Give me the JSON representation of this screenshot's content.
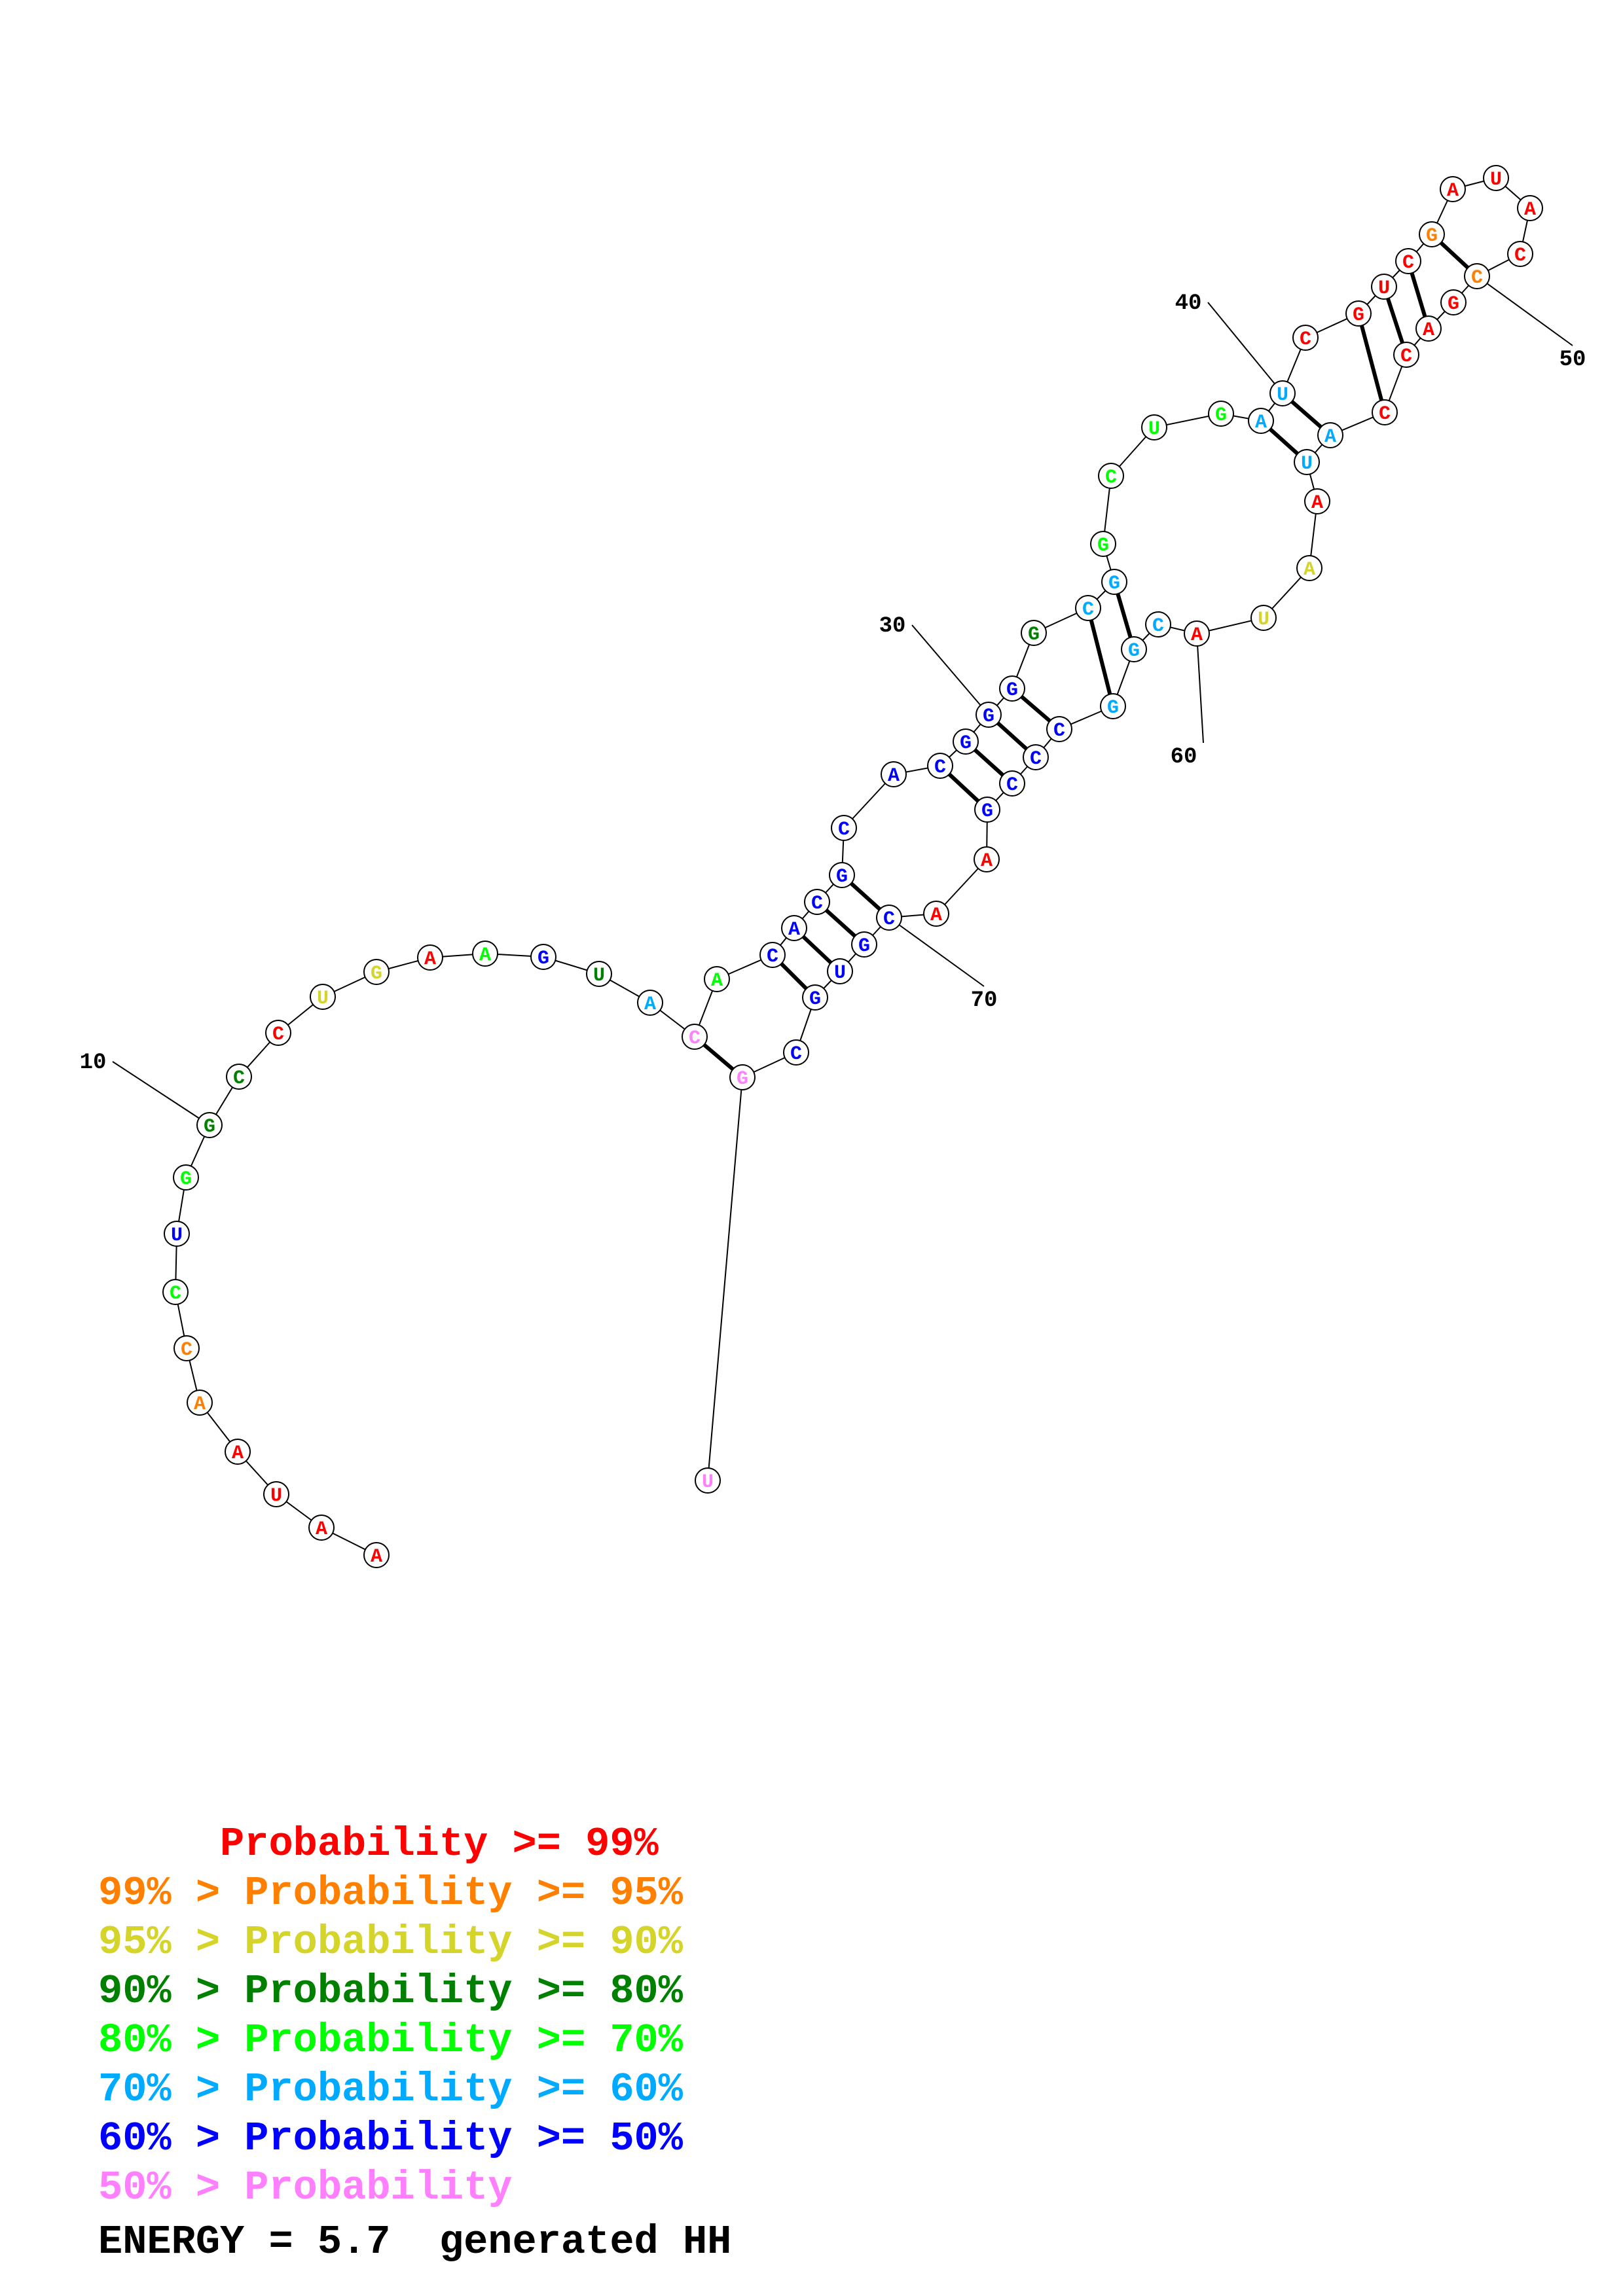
{
  "colors": {
    "p99": "#ff0000",
    "p95": "#ff8000",
    "p90": "#d4d42a",
    "p80": "#008000",
    "p70": "#00ff00",
    "p60": "#00aaff",
    "p50": "#0000ff",
    "plow": "#ff80ff"
  },
  "sequence": [
    {
      "n": 1,
      "b": "A",
      "c": "p99"
    },
    {
      "n": 2,
      "b": "A",
      "c": "p99"
    },
    {
      "n": 3,
      "b": "U",
      "c": "p99"
    },
    {
      "n": 4,
      "b": "A",
      "c": "p99"
    },
    {
      "n": 5,
      "b": "A",
      "c": "p95"
    },
    {
      "n": 6,
      "b": "C",
      "c": "p95"
    },
    {
      "n": 7,
      "b": "C",
      "c": "p70"
    },
    {
      "n": 8,
      "b": "U",
      "c": "p50"
    },
    {
      "n": 9,
      "b": "G",
      "c": "p70"
    },
    {
      "n": 10,
      "b": "G",
      "c": "p80"
    },
    {
      "n": 11,
      "b": "C",
      "c": "p80"
    },
    {
      "n": 12,
      "b": "C",
      "c": "p99"
    },
    {
      "n": 13,
      "b": "U",
      "c": "p90"
    },
    {
      "n": 14,
      "b": "G",
      "c": "p90"
    },
    {
      "n": 15,
      "b": "A",
      "c": "p99"
    },
    {
      "n": 16,
      "b": "A",
      "c": "p70"
    },
    {
      "n": 17,
      "b": "G",
      "c": "p50"
    },
    {
      "n": 18,
      "b": "U",
      "c": "p80"
    },
    {
      "n": 19,
      "b": "A",
      "c": "p60"
    },
    {
      "n": 20,
      "b": "C",
      "c": "plow"
    },
    {
      "n": 21,
      "b": "A",
      "c": "p70"
    },
    {
      "n": 22,
      "b": "C",
      "c": "p50"
    },
    {
      "n": 23,
      "b": "A",
      "c": "p50"
    },
    {
      "n": 24,
      "b": "C",
      "c": "p50"
    },
    {
      "n": 25,
      "b": "G",
      "c": "p50"
    },
    {
      "n": 26,
      "b": "C",
      "c": "p50"
    },
    {
      "n": 27,
      "b": "A",
      "c": "p50"
    },
    {
      "n": 28,
      "b": "C",
      "c": "p50"
    },
    {
      "n": 29,
      "b": "G",
      "c": "p50"
    },
    {
      "n": 30,
      "b": "G",
      "c": "p50"
    },
    {
      "n": 31,
      "b": "G",
      "c": "p50"
    },
    {
      "n": 32,
      "b": "G",
      "c": "p80"
    },
    {
      "n": 33,
      "b": "C",
      "c": "p60"
    },
    {
      "n": 34,
      "b": "G",
      "c": "p60"
    },
    {
      "n": 35,
      "b": "G",
      "c": "p70"
    },
    {
      "n": 36,
      "b": "C",
      "c": "p70"
    },
    {
      "n": 37,
      "b": "U",
      "c": "p70"
    },
    {
      "n": 38,
      "b": "G",
      "c": "p70"
    },
    {
      "n": 39,
      "b": "A",
      "c": "p60"
    },
    {
      "n": 40,
      "b": "U",
      "c": "p60"
    },
    {
      "n": 41,
      "b": "C",
      "c": "p99"
    },
    {
      "n": 42,
      "b": "G",
      "c": "p99"
    },
    {
      "n": 43,
      "b": "U",
      "c": "p99"
    },
    {
      "n": 44,
      "b": "C",
      "c": "p99"
    },
    {
      "n": 45,
      "b": "G",
      "c": "p95"
    },
    {
      "n": 46,
      "b": "A",
      "c": "p99"
    },
    {
      "n": 47,
      "b": "U",
      "c": "p99"
    },
    {
      "n": 48,
      "b": "A",
      "c": "p99"
    },
    {
      "n": 49,
      "b": "C",
      "c": "p99"
    },
    {
      "n": 50,
      "b": "C",
      "c": "p95"
    },
    {
      "n": 51,
      "b": "G",
      "c": "p99"
    },
    {
      "n": 52,
      "b": "A",
      "c": "p99"
    },
    {
      "n": 53,
      "b": "C",
      "c": "p99"
    },
    {
      "n": 54,
      "b": "C",
      "c": "p99"
    },
    {
      "n": 55,
      "b": "A",
      "c": "p60"
    },
    {
      "n": 56,
      "b": "U",
      "c": "p60"
    },
    {
      "n": 57,
      "b": "A",
      "c": "p99"
    },
    {
      "n": 58,
      "b": "A",
      "c": "p90"
    },
    {
      "n": 59,
      "b": "U",
      "c": "p90"
    },
    {
      "n": 60,
      "b": "A",
      "c": "p99"
    },
    {
      "n": 61,
      "b": "C",
      "c": "p60"
    },
    {
      "n": 62,
      "b": "G",
      "c": "p60"
    },
    {
      "n": 63,
      "b": "G",
      "c": "p60"
    },
    {
      "n": 64,
      "b": "C",
      "c": "p50"
    },
    {
      "n": 65,
      "b": "C",
      "c": "p50"
    },
    {
      "n": 66,
      "b": "C",
      "c": "p50"
    },
    {
      "n": 67,
      "b": "G",
      "c": "p50"
    },
    {
      "n": 68,
      "b": "A",
      "c": "p99"
    },
    {
      "n": 69,
      "b": "A",
      "c": "p99"
    },
    {
      "n": 70,
      "b": "C",
      "c": "p50"
    },
    {
      "n": 71,
      "b": "G",
      "c": "p50"
    },
    {
      "n": 72,
      "b": "U",
      "c": "p50"
    },
    {
      "n": 73,
      "b": "G",
      "c": "p50"
    },
    {
      "n": 74,
      "b": "C",
      "c": "p50"
    },
    {
      "n": 75,
      "b": "G",
      "c": "plow"
    },
    {
      "n": 76,
      "b": "U",
      "c": "plow"
    }
  ],
  "pairs": [
    [
      20,
      75
    ],
    [
      22,
      73
    ],
    [
      23,
      72
    ],
    [
      24,
      71
    ],
    [
      25,
      70
    ],
    [
      28,
      67
    ],
    [
      29,
      66
    ],
    [
      30,
      65
    ],
    [
      31,
      64
    ],
    [
      33,
      63
    ],
    [
      34,
      62
    ],
    [
      39,
      56
    ],
    [
      40,
      55
    ],
    [
      42,
      54
    ],
    [
      43,
      53
    ],
    [
      44,
      52
    ],
    [
      45,
      50
    ]
  ],
  "position_labels": [
    {
      "n": 10,
      "text": "10"
    },
    {
      "n": 30,
      "text": "30"
    },
    {
      "n": 40,
      "text": "40"
    },
    {
      "n": 50,
      "text": "50"
    },
    {
      "n": 60,
      "text": "60"
    },
    {
      "n": 70,
      "text": "70"
    }
  ],
  "legend": [
    {
      "prefix": "     ",
      "label": "Probability >= 99%",
      "c": "p99"
    },
    {
      "prefix": "99% > ",
      "label": "Probability >= 95%",
      "c": "p95"
    },
    {
      "prefix": "95% > ",
      "label": "Probability >= 90%",
      "c": "p90"
    },
    {
      "prefix": "90% > ",
      "label": "Probability >= 80%",
      "c": "p80"
    },
    {
      "prefix": "80% > ",
      "label": "Probability >= 70%",
      "c": "p70"
    },
    {
      "prefix": "70% > ",
      "label": "Probability >= 60%",
      "c": "p60"
    },
    {
      "prefix": "60% > ",
      "label": "Probability >= 50%",
      "c": "p50"
    },
    {
      "prefix": "50% > ",
      "label": "Probability",
      "c": "plow"
    }
  ],
  "energy": "ENERGY = 5.7  generated HH"
}
